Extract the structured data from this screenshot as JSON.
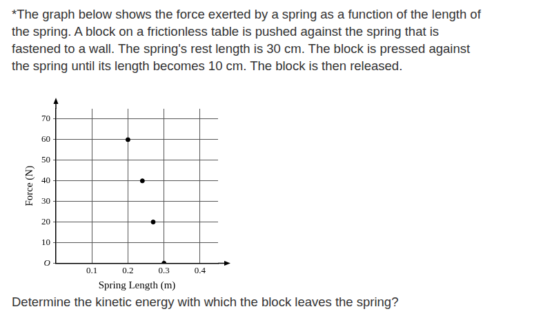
{
  "text": [
    "*The graph below shows the force exerted by a spring as a function of the length of",
    "the spring.  A block on a frictionless table is pushed against the spring that is",
    "fastened to a wall.  The spring's rest length is 30 cm.  The block is pressed against",
    "the spring until its length becomes 10 cm. The block is then released."
  ],
  "chart_data": {
    "type": "scatter",
    "x_label": "Spring Length (m)",
    "y_label": "Force (N)",
    "x": [
      0.2,
      0.24,
      0.27,
      0.3
    ],
    "values": [
      60,
      40,
      20,
      0
    ],
    "color": "#000000",
    "marker": "circle",
    "xlim": [
      0,
      0.45
    ],
    "xticks": [
      0.1,
      0.2,
      0.3,
      0.4
    ],
    "ylim": [
      0,
      75
    ],
    "yticks": [
      {
        "value": 0,
        "label": "O"
      },
      10,
      20,
      30,
      40,
      50,
      60,
      70
    ],
    "grid": true
  },
  "question": "Determine the kinetic energy with which the block leaves the spring?"
}
